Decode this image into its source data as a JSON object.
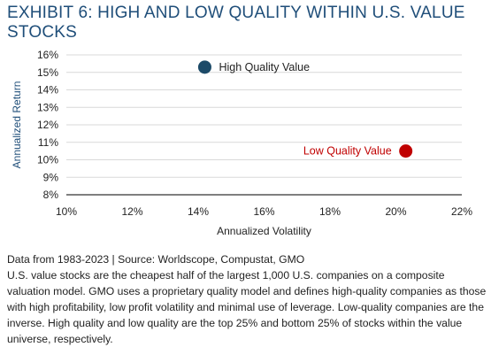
{
  "exhibit": {
    "title": "EXHIBIT 6: HIGH AND LOW QUALITY WITHIN U.S. VALUE STOCKS"
  },
  "chart_data": {
    "type": "scatter",
    "xlabel": "Annualized Volatility",
    "ylabel": "Annualized Return",
    "xlim": [
      10,
      22
    ],
    "ylim": [
      8,
      16
    ],
    "x_ticks": [
      "10%",
      "12%",
      "14%",
      "16%",
      "18%",
      "20%",
      "22%"
    ],
    "y_ticks": [
      "16%",
      "15%",
      "14%",
      "13%",
      "12%",
      "11%",
      "10%",
      "9%",
      "8%"
    ],
    "x_tick_values": [
      10,
      12,
      14,
      16,
      18,
      20,
      22
    ],
    "y_tick_values": [
      16,
      15,
      14,
      13,
      12,
      11,
      10,
      9,
      8
    ],
    "grid": "horizontal",
    "points": [
      {
        "label": "High Quality Value",
        "x": 14.2,
        "y": 15.3,
        "color": "#1c4a68",
        "label_color": "#222222",
        "label_side": "right"
      },
      {
        "label": "Low Quality Value",
        "x": 20.3,
        "y": 10.5,
        "color": "#c00000",
        "label_color": "#c00000",
        "label_side": "left"
      }
    ]
  },
  "footer": {
    "source": "Data from 1983-2023 | Source: Worldscope, Compustat, GMO",
    "note": "U.S. value stocks are the cheapest half of the largest 1,000 U.S. companies on a composite valuation model. GMO uses a proprietary quality model and defines high-quality companies as those with high profitability, low profit volatility and minimal use of leverage. Low-quality companies are the inverse. High quality and low quality are the top 25% and bottom 25% of stocks within the value universe, respectively."
  },
  "colors": {
    "title": "#1f4e79",
    "gridline": "#d9d9d9",
    "axis": "#333333"
  }
}
